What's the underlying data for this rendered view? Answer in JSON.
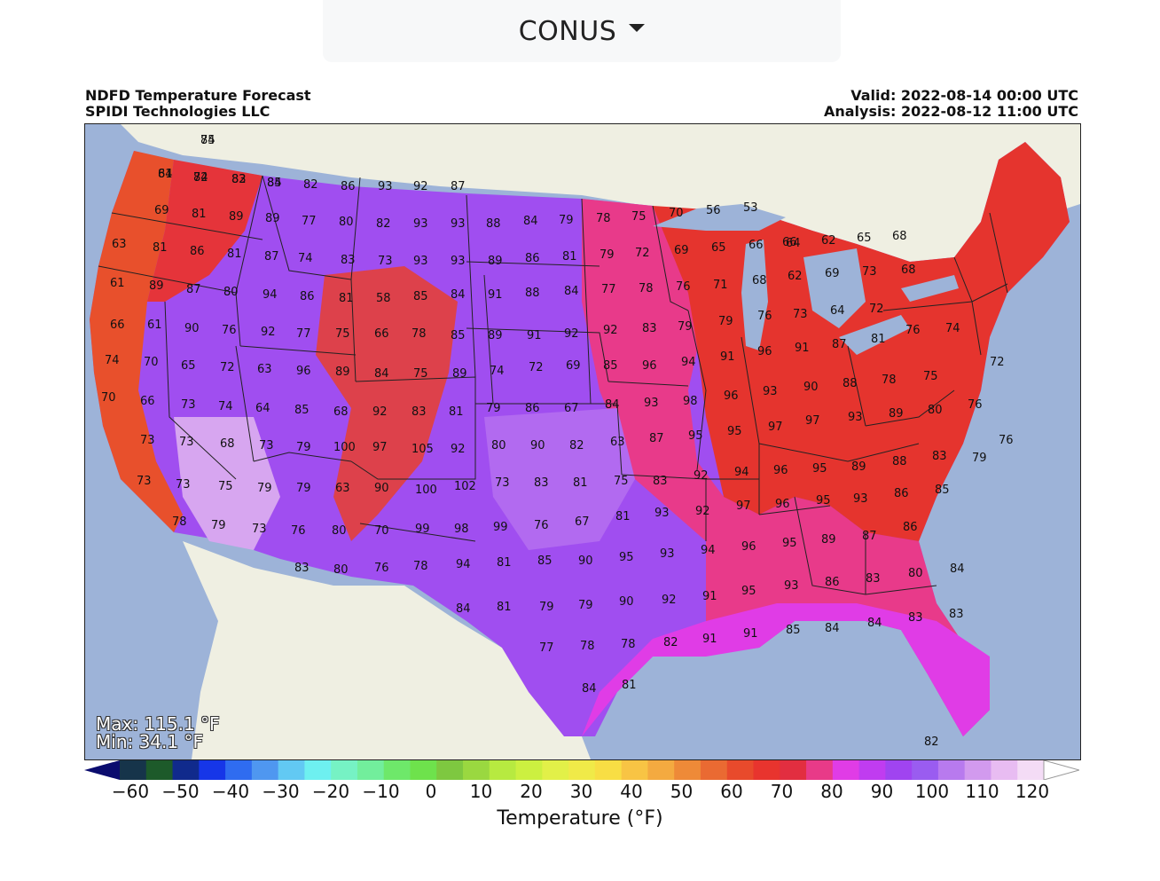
{
  "region_selector": {
    "value": "CONUS",
    "icon": "caret-down-icon"
  },
  "header": {
    "title": "NDFD Temperature Forecast",
    "credit": "SPIDI Technologies LLC",
    "valid": "Valid: 2022-08-14 00:00 UTC",
    "analysis": "Analysis: 2022-08-12 11:00 UTC"
  },
  "stats": {
    "max": "Max: 115.1 °F",
    "min": "Min: 34.1 °F"
  },
  "colorbar": {
    "title": "Temperature (°F)",
    "ticks": [
      "−60",
      "−50",
      "−40",
      "−30",
      "−20",
      "−10",
      "0",
      "10",
      "20",
      "30",
      "40",
      "50",
      "60",
      "70",
      "80",
      "90",
      "100",
      "110",
      "120"
    ],
    "colors": [
      "#0b0c6e",
      "#16344a",
      "#1d5a2a",
      "#102a8c",
      "#1636e8",
      "#2f6cf0",
      "#4f97f0",
      "#62c9f3",
      "#6ef0f0",
      "#76f2c4",
      "#72ee9c",
      "#6ee86a",
      "#6ee24c",
      "#7ec840",
      "#9ad840",
      "#b7ea40",
      "#ccf040",
      "#e2f048",
      "#f0ea48",
      "#f8de44",
      "#f8c444",
      "#f4aa40",
      "#ee8a38",
      "#ea6a32",
      "#e84a2c",
      "#e8342e",
      "#e22e40",
      "#e83a88",
      "#e03ce6",
      "#c03cf0",
      "#a044f0",
      "#9a5cf0",
      "#b87aee",
      "#d29aee",
      "#e8bcf2",
      "#f4dcf6",
      "#ffffff"
    ]
  },
  "chart_data": {
    "type": "heatmap",
    "title": "NDFD Temperature Forecast",
    "units": "°F",
    "legend_range": [
      -60,
      120
    ],
    "station_labels": [
      "74",
      "61",
      "74",
      "83",
      "85",
      "82",
      "86",
      "93",
      "92",
      "87",
      "69",
      "81",
      "89",
      "89",
      "77",
      "80",
      "82",
      "93",
      "93",
      "88",
      "84",
      "79",
      "78",
      "75",
      "70",
      "56",
      "53",
      "66",
      "63",
      "81",
      "86",
      "81",
      "87",
      "74",
      "83",
      "73",
      "93",
      "93",
      "89",
      "86",
      "81",
      "79",
      "72",
      "69",
      "65",
      "66",
      "64",
      "62",
      "65",
      "68",
      "61",
      "89",
      "87",
      "80",
      "94",
      "86",
      "81",
      "58",
      "85",
      "84",
      "91",
      "88",
      "84",
      "77",
      "78",
      "76",
      "71",
      "68",
      "62",
      "69",
      "73",
      "68",
      "66",
      "61",
      "90",
      "76",
      "92",
      "77",
      "75",
      "66",
      "78",
      "85",
      "89",
      "91",
      "92",
      "92",
      "83",
      "79",
      "79",
      "76",
      "73",
      "64",
      "72",
      "74",
      "70",
      "65",
      "72",
      "63",
      "96",
      "89",
      "84",
      "75",
      "89",
      "74",
      "72",
      "69",
      "85",
      "96",
      "94",
      "91",
      "96",
      "91",
      "87",
      "81",
      "76",
      "74",
      "72",
      "70",
      "66",
      "73",
      "74",
      "64",
      "85",
      "68",
      "92",
      "83",
      "81",
      "79",
      "86",
      "67",
      "84",
      "93",
      "98",
      "96",
      "93",
      "90",
      "88",
      "78",
      "75",
      "73",
      "73",
      "68",
      "73",
      "79",
      "100",
      "97",
      "105",
      "92",
      "80",
      "90",
      "82",
      "63",
      "87",
      "95",
      "95",
      "97",
      "97",
      "93",
      "89",
      "80",
      "76",
      "76",
      "73",
      "73",
      "75",
      "79",
      "79",
      "63",
      "90",
      "100",
      "102",
      "73",
      "83",
      "81",
      "75",
      "83",
      "92",
      "94",
      "96",
      "95",
      "89",
      "88",
      "83",
      "79",
      "78",
      "79",
      "73",
      "76",
      "80",
      "70",
      "99",
      "98",
      "99",
      "76",
      "67",
      "81",
      "93",
      "92",
      "97",
      "96",
      "95",
      "93",
      "86",
      "85",
      "83",
      "80",
      "76",
      "78",
      "94",
      "81",
      "85",
      "90",
      "95",
      "93",
      "94",
      "96",
      "95",
      "89",
      "87",
      "86",
      "84",
      "81",
      "79",
      "79",
      "90",
      "92",
      "91",
      "95",
      "93",
      "86",
      "83",
      "80",
      "84",
      "77",
      "78",
      "78",
      "82",
      "91",
      "91",
      "85",
      "84",
      "84",
      "83",
      "83",
      "84",
      "81",
      "82",
      "85",
      "84",
      "82",
      "82",
      "84"
    ]
  }
}
